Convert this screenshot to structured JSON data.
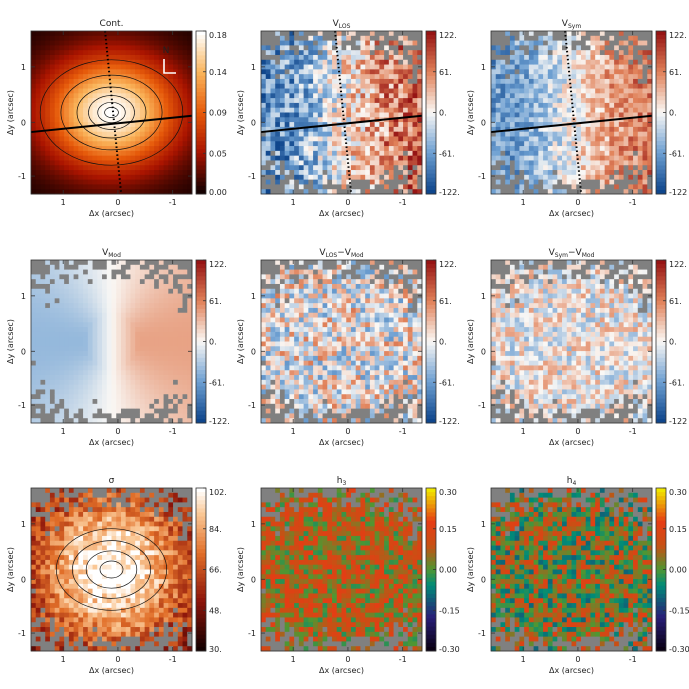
{
  "chart_data": [
    {
      "id": "cont",
      "type": "heatmap",
      "title_parts": [
        {
          "t": "Cont."
        }
      ],
      "xlabel": "Δx (arcsec)",
      "ylabel": "Δy (arcsec)",
      "xticks": [
        "1",
        "0",
        "-1"
      ],
      "yticks": [
        "1",
        "0",
        "-1"
      ],
      "colorbar": {
        "ticks": [
          "0.18",
          "0.14",
          "0.09",
          "0.05",
          "0.00"
        ],
        "colormap": "hot"
      },
      "compass": "N",
      "pa_line": true,
      "minor_axis_dotted": true,
      "contours": true
    },
    {
      "id": "vlos",
      "type": "heatmap",
      "title_parts": [
        {
          "t": "V"
        },
        {
          "t": "LOS",
          "sub": true
        }
      ],
      "xlabel": "Δx (arcsec)",
      "ylabel": "Δy (arcsec)",
      "xticks": [
        "1",
        "0",
        "-1"
      ],
      "yticks": [
        "1",
        "0",
        "-1"
      ],
      "colorbar": {
        "ticks": [
          "122.",
          "61.",
          "0.",
          "-61.",
          "-122."
        ],
        "colormap": "diverging"
      },
      "pa_line": true,
      "minor_axis_dotted": true
    },
    {
      "id": "vsym",
      "type": "heatmap",
      "title_parts": [
        {
          "t": "V"
        },
        {
          "t": "Sym",
          "sub": true
        }
      ],
      "xlabel": "Δx (arcsec)",
      "ylabel": "Δy (arcsec)",
      "xticks": [
        "1",
        "0",
        "-1"
      ],
      "yticks": [
        "1",
        "0",
        "-1"
      ],
      "colorbar": {
        "ticks": [
          "122.",
          "61.",
          "0.",
          "-61.",
          "-122"
        ],
        "colormap": "diverging"
      },
      "pa_line": true,
      "minor_axis_dotted": true
    },
    {
      "id": "vmod",
      "type": "heatmap",
      "title_parts": [
        {
          "t": "V"
        },
        {
          "t": "Mod",
          "sub": true
        }
      ],
      "xlabel": "Δx (arcsec)",
      "ylabel": "Δy (arcsec)",
      "xticks": [
        "1",
        "0",
        "-1"
      ],
      "yticks": [
        "1",
        "0",
        "-1"
      ],
      "colorbar": {
        "ticks": [
          "122.",
          "61.",
          "0.",
          "-61.",
          "-122."
        ],
        "colormap": "diverging"
      }
    },
    {
      "id": "vlos_vmod",
      "type": "heatmap",
      "title_parts": [
        {
          "t": "V"
        },
        {
          "t": "LOS",
          "sub": true
        },
        {
          "t": "−V"
        },
        {
          "t": "Mod",
          "sub": true
        }
      ],
      "xlabel": "Δx (arcsec)",
      "ylabel": "Δy (arcsec)",
      "xticks": [
        "1",
        "0",
        "-1"
      ],
      "yticks": [
        "1",
        "0",
        "-1"
      ],
      "colorbar": {
        "ticks": [
          "122.",
          "61.",
          "0.",
          "-61.",
          "-122."
        ],
        "colormap": "diverging"
      }
    },
    {
      "id": "vsym_vmod",
      "type": "heatmap",
      "title_parts": [
        {
          "t": "V"
        },
        {
          "t": "Sym",
          "sub": true
        },
        {
          "t": "−V"
        },
        {
          "t": "Mod",
          "sub": true
        }
      ],
      "xlabel": "Δx (arcsec)",
      "ylabel": "Δy (arcsec)",
      "xticks": [
        "1",
        "0",
        "-1"
      ],
      "yticks": [
        "1",
        "0",
        "-1"
      ],
      "colorbar": {
        "ticks": [
          "122.",
          "61.",
          "0.",
          "-61.",
          "-122"
        ],
        "colormap": "diverging"
      }
    },
    {
      "id": "sigma",
      "type": "heatmap",
      "title_parts": [
        {
          "t": "σ"
        }
      ],
      "xlabel": "Δx (arcsec)",
      "ylabel": "Δy (arcsec)",
      "xticks": [
        "1",
        "0",
        "-1"
      ],
      "yticks": [
        "1",
        "0",
        "-1"
      ],
      "colorbar": {
        "ticks": [
          "102.",
          "84.",
          "66.",
          "48.",
          "30."
        ],
        "colormap": "sigma"
      },
      "contours": true
    },
    {
      "id": "h3",
      "type": "heatmap",
      "title_parts": [
        {
          "t": "h"
        },
        {
          "t": "3",
          "sub": true
        }
      ],
      "xlabel": "Δx (arcsec)",
      "ylabel": "Δy (arcsec)",
      "xticks": [
        "1",
        "0",
        "-1"
      ],
      "yticks": [
        "1",
        "0",
        "-1"
      ],
      "colorbar": {
        "ticks": [
          "0.30",
          "0.15",
          "0.00",
          "-0.15",
          "-0.30"
        ],
        "colormap": "rainbow"
      }
    },
    {
      "id": "h4",
      "type": "heatmap",
      "title_parts": [
        {
          "t": "h"
        },
        {
          "t": "4",
          "sub": true
        }
      ],
      "xlabel": "Δx (arcsec)",
      "ylabel": "Δy (arcsec)",
      "xticks": [
        "1",
        "0",
        "-1"
      ],
      "yticks": [
        "1",
        "0",
        "-1"
      ],
      "colorbar": {
        "ticks": [
          "0.30",
          "0.15",
          "0.00",
          "-0.15",
          "-0.30"
        ],
        "colormap": "rainbow"
      }
    }
  ],
  "colors": {
    "masked": "#808080",
    "axis": "#333333"
  }
}
